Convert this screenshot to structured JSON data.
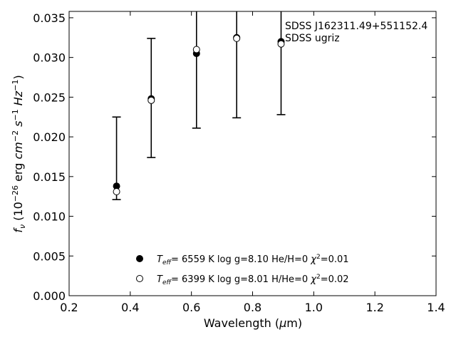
{
  "chart_data": {
    "type": "scatter",
    "title": "",
    "xlabel_prefix": "Wavelength (",
    "xlabel_mu": "μ",
    "xlabel_suffix": "m)",
    "ylabel_base": "f",
    "ylabel_sub": "ν",
    "ylabel_open": " (10",
    "ylabel_exp1": "−26",
    "ylabel_mid1": " erg ",
    "ylabel_cm": "cm",
    "ylabel_exp2": "−2",
    "ylabel_s": " s",
    "ylabel_exp3": "−1",
    "ylabel_hz": " Hz",
    "ylabel_exp4": "−1",
    "ylabel_close": ")",
    "xlim": [
      0.2,
      1.4
    ],
    "ylim": [
      0.0,
      0.0358
    ],
    "xticks": [
      0.2,
      0.4,
      0.6,
      0.8,
      1.0,
      1.2,
      1.4
    ],
    "xtick_labels": [
      "0.2",
      "0.4",
      "0.6",
      "0.8",
      "1.0",
      "1.2",
      "1.4"
    ],
    "yticks": [
      0.0,
      0.005,
      0.01,
      0.015,
      0.02,
      0.025,
      0.03,
      0.035
    ],
    "ytick_labels": [
      "0.000",
      "0.005",
      "0.010",
      "0.015",
      "0.020",
      "0.025",
      "0.030",
      "0.035"
    ],
    "grid": false,
    "legend_placement": "lower-center",
    "annotation": [
      "SDSS J162311.49+551152.4",
      "SDSS ugriz"
    ],
    "errorbars": {
      "x": [
        0.3551,
        0.4686,
        0.6166,
        0.748,
        0.8932
      ],
      "y": [
        0.0173,
        0.0249,
        0.0312,
        0.0328,
        0.0307
      ],
      "yerr": [
        0.0052,
        0.0075,
        0.0101,
        0.0104,
        0.0079
      ]
    },
    "series": [
      {
        "name": "He/H=0",
        "marker": "filled",
        "legend_teff_pre": "T",
        "legend_teff_sub": "eff",
        "legend_text": "=  6559 K  log g=8.10  He/H=0  ",
        "legend_chi": "χ",
        "legend_chi_exp": "2",
        "legend_chi_val": "=0.01",
        "x": [
          0.3551,
          0.4686,
          0.6166,
          0.748,
          0.8932
        ],
        "y": [
          0.0138,
          0.0248,
          0.0305,
          0.0325,
          0.032
        ]
      },
      {
        "name": "H/He=0",
        "marker": "open",
        "legend_teff_pre": "T",
        "legend_teff_sub": "eff",
        "legend_text": "=  6399 K  log g=8.01  H/He=0  ",
        "legend_chi": "χ",
        "legend_chi_exp": "2",
        "legend_chi_val": "=0.02",
        "x": [
          0.3551,
          0.4686,
          0.6166,
          0.748,
          0.8932
        ],
        "y": [
          0.0131,
          0.0246,
          0.031,
          0.0324,
          0.0317
        ]
      }
    ],
    "colors": {
      "marker": "#000000",
      "open_fill": "#ffffff",
      "axes": "#000000"
    }
  }
}
